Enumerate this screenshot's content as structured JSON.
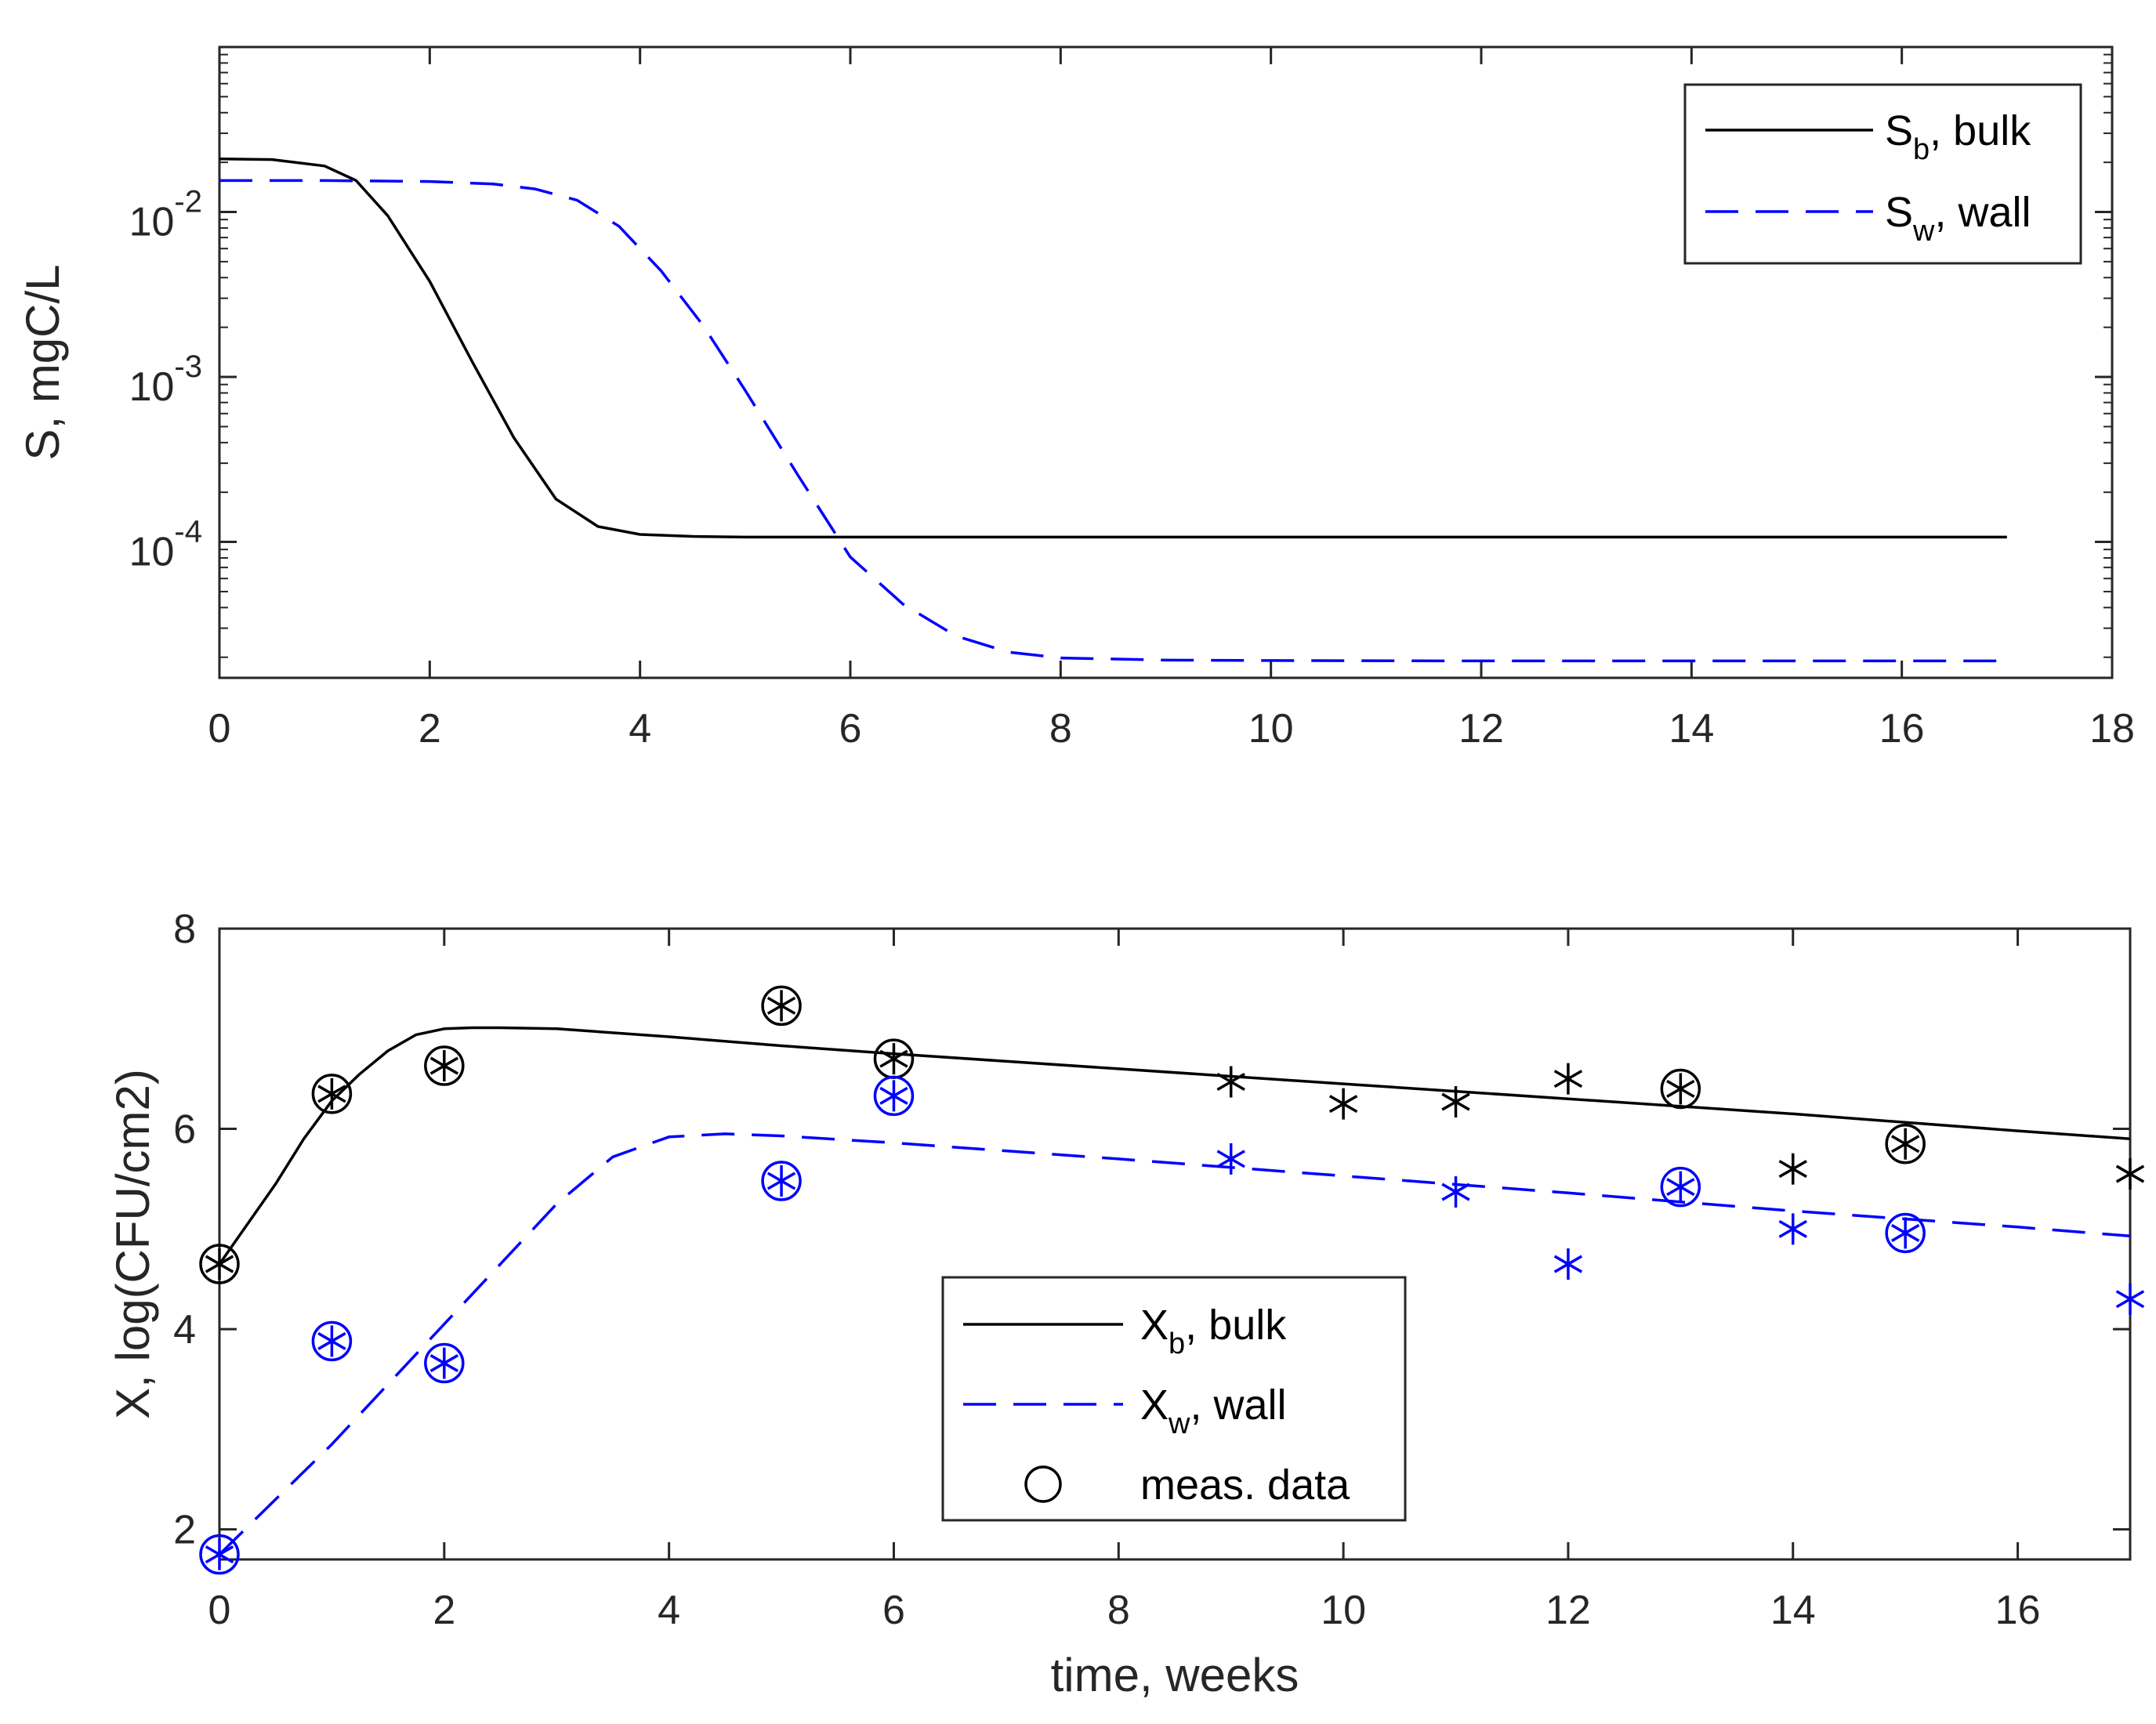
{
  "chart_data": [
    {
      "type": "line",
      "id": "top",
      "ylabel": "S, mgC/L",
      "xlabel": "",
      "yscale": "log",
      "xlim": [
        0,
        18
      ],
      "ylim": [
        1.5e-05,
        0.1
      ],
      "xticks": [
        0,
        2,
        4,
        6,
        8,
        10,
        12,
        14,
        16,
        18
      ],
      "xtick_labels": [
        "0",
        "2",
        "4",
        "6",
        "8",
        "10",
        "12",
        "14",
        "16",
        "18"
      ],
      "yticks": [
        0.01,
        0.001,
        0.0001
      ],
      "ytick_labels": [
        {
          "base": "10",
          "exp": "-2"
        },
        {
          "base": "10",
          "exp": "-3"
        },
        {
          "base": "10",
          "exp": "-4"
        }
      ],
      "legend_position": "top-right",
      "series": [
        {
          "name": "Sb, bulk",
          "legend_main": "S",
          "legend_sub": "b",
          "legend_rest": ", bulk",
          "color": "#000000",
          "dash": "solid",
          "x": [
            0,
            0.5,
            1.0,
            1.3,
            1.6,
            2.0,
            2.4,
            2.8,
            3.2,
            3.6,
            4.0,
            4.5,
            5,
            6,
            8,
            10,
            12,
            14,
            16,
            17
          ],
          "y": [
            0.021,
            0.0208,
            0.019,
            0.0155,
            0.0095,
            0.0038,
            0.00125,
            0.000428,
            0.000182,
            0.000124,
            0.000111,
            0.000108,
            0.000107,
            0.000107,
            0.000107,
            0.000107,
            0.000107,
            0.000107,
            0.000107,
            0.000107
          ]
        },
        {
          "name": "Sw, wall",
          "legend_main": "S",
          "legend_sub": "w",
          "legend_rest": ", wall",
          "color": "#0000ff",
          "dash": "long-dash",
          "x": [
            0,
            1,
            2,
            2.6,
            3.0,
            3.4,
            3.8,
            4.2,
            4.6,
            5.0,
            5.5,
            6.0,
            6.5,
            7.0,
            7.5,
            8.0,
            9,
            10,
            12,
            14,
            16,
            17
          ],
          "y": [
            0.0155,
            0.0155,
            0.0153,
            0.0148,
            0.0138,
            0.0118,
            0.0082,
            0.0044,
            0.00205,
            0.00083,
            0.000255,
            8.1e-05,
            4.2e-05,
            2.7e-05,
            2.15e-05,
            1.98e-05,
            1.92e-05,
            1.91e-05,
            1.9e-05,
            1.9e-05,
            1.9e-05,
            1.9e-05
          ]
        }
      ]
    },
    {
      "type": "line",
      "id": "bottom",
      "ylabel": "X, log(CFU/cm2)",
      "xlabel": "time, weeks",
      "yscale": "linear",
      "xlim": [
        0,
        17
      ],
      "ylim": [
        1.7,
        8
      ],
      "xticks": [
        0,
        2,
        4,
        6,
        8,
        10,
        12,
        14,
        16
      ],
      "xtick_labels": [
        "0",
        "2",
        "4",
        "6",
        "8",
        "10",
        "12",
        "14",
        "16"
      ],
      "yticks": [
        2,
        4,
        6,
        8
      ],
      "ytick_labels": [
        "2",
        "4",
        "6",
        "8"
      ],
      "legend_position": "bottom-center",
      "series": [
        {
          "name": "Xb, bulk",
          "legend_main": "X",
          "legend_sub": "b",
          "legend_rest": ", bulk",
          "color": "#000000",
          "dash": "solid",
          "x": [
            0,
            0.25,
            0.5,
            0.75,
            1.0,
            1.25,
            1.5,
            1.75,
            2.0,
            2.25,
            2.5,
            3,
            4,
            5,
            6,
            8,
            10,
            12,
            14,
            16,
            17
          ],
          "y": [
            4.65,
            5.05,
            5.45,
            5.9,
            6.28,
            6.55,
            6.78,
            6.94,
            7.0,
            7.01,
            7.01,
            7.0,
            6.92,
            6.83,
            6.75,
            6.6,
            6.45,
            6.3,
            6.15,
            5.98,
            5.9
          ]
        },
        {
          "name": "Xw, wall",
          "legend_main": "X",
          "legend_sub": "w",
          "legend_rest": ", wall",
          "color": "#0000ff",
          "dash": "long-dash",
          "x": [
            0,
            0.5,
            1.0,
            1.5,
            2.0,
            2.5,
            3.0,
            3.5,
            4.0,
            4.5,
            5,
            6,
            8,
            10,
            12,
            14,
            16,
            17
          ],
          "y": [
            1.75,
            2.3,
            2.85,
            3.45,
            4.05,
            4.65,
            5.25,
            5.72,
            5.92,
            5.95,
            5.93,
            5.86,
            5.7,
            5.53,
            5.36,
            5.18,
            5.02,
            4.93
          ]
        },
        {
          "name": "meas. data",
          "legend_main": "meas. data",
          "marker": "circle",
          "color": "#000000"
        }
      ],
      "measurements": {
        "bulk": {
          "color": "#000000",
          "x": [
            0,
            1,
            2,
            5,
            6,
            9,
            10,
            11,
            12,
            13,
            14,
            15,
            17
          ],
          "y": [
            4.65,
            6.35,
            6.63,
            7.23,
            6.7,
            6.47,
            6.25,
            6.27,
            6.5,
            6.4,
            5.6,
            5.85,
            5.55
          ],
          "circled": [
            true,
            true,
            true,
            true,
            true,
            false,
            false,
            false,
            false,
            true,
            false,
            true,
            false
          ]
        },
        "wall": {
          "color": "#0000ff",
          "x": [
            0,
            1,
            2,
            5,
            6,
            9,
            11,
            12,
            13,
            14,
            15,
            17
          ],
          "y": [
            1.75,
            3.88,
            3.66,
            5.48,
            6.33,
            5.7,
            5.37,
            4.65,
            5.42,
            5.0,
            4.96,
            4.3
          ],
          "circled": [
            true,
            true,
            true,
            true,
            true,
            false,
            false,
            false,
            true,
            false,
            true,
            false
          ]
        }
      }
    }
  ]
}
